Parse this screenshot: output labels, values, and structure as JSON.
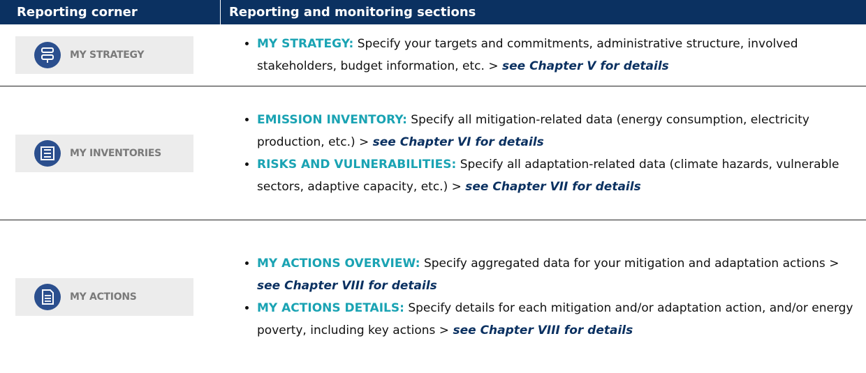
{
  "header": {
    "col1": "Reporting corner",
    "col2": "Reporting and monitoring sections"
  },
  "rows": [
    {
      "button": "MY STRATEGY",
      "items": [
        {
          "title": "MY STRATEGY:",
          "text": "Specify your targets and commitments, administrative structure, involved stakeholders, budget information, etc. >",
          "link": "see Chapter V for details"
        }
      ]
    },
    {
      "button": "MY INVENTORIES",
      "items": [
        {
          "title": "EMISSION INVENTORY:",
          "text": "Specify all mitigation-related data (energy consumption, electricity production, etc.) >",
          "link": "see Chapter VI for details"
        },
        {
          "title": "RISKS AND VULNERABILITIES:",
          "text": "Specify all adaptation-related data (climate hazards, vulnerable sectors, adaptive capacity, etc.) >",
          "link": "see Chapter VII for details"
        }
      ]
    },
    {
      "button": "MY ACTIONS",
      "items": [
        {
          "title": "MY ACTIONS OVERVIEW:",
          "text": "Specify aggregated data for your mitigation and adaptation actions >",
          "link": "see Chapter VIII for details"
        },
        {
          "title": "MY ACTIONS DETAILS:",
          "text": "Specify details for each mitigation and/or adaptation action, and/or energy poverty, including key actions >",
          "link": "see Chapter VIII for details"
        }
      ]
    }
  ]
}
